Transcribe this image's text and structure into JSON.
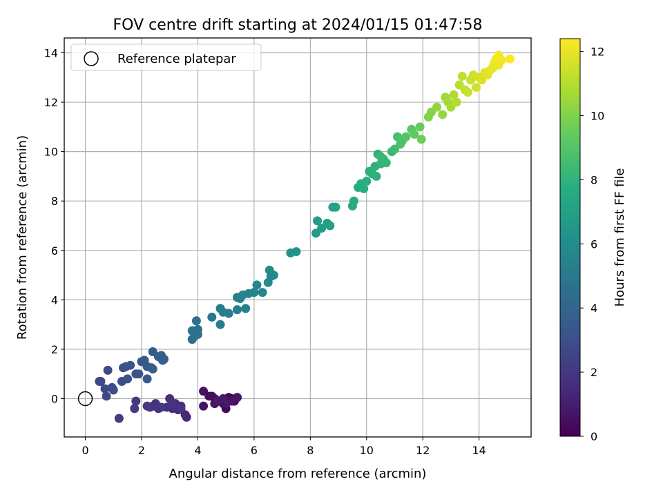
{
  "chart_data": {
    "type": "scatter",
    "title": "FOV centre drift starting at 2024/01/15 01:47:58",
    "xlabel": "Angular distance from reference (arcmin)",
    "ylabel": "Rotation from reference (arcmin)",
    "xlim": [
      -0.75,
      15.85
    ],
    "ylim": [
      -1.55,
      14.6
    ],
    "xticks": [
      0,
      2,
      4,
      6,
      8,
      10,
      12,
      14
    ],
    "yticks": [
      0,
      2,
      4,
      6,
      8,
      10,
      12,
      14
    ],
    "grid": true,
    "legend": {
      "location": "upper-left",
      "entries": [
        "Reference platepar"
      ]
    },
    "reference_point": {
      "x": 0,
      "y": 0
    },
    "colorbar": {
      "label": "Hours from first FF file",
      "colormap": "viridis",
      "range": [
        0,
        12.4
      ],
      "ticks": [
        0,
        2,
        4,
        6,
        8,
        10,
        12
      ]
    },
    "series": [
      {
        "color_by": "hours",
        "x": [
          5.4,
          5.3,
          5.2,
          5.1,
          5.0,
          4.9,
          4.8,
          4.6,
          4.5,
          4.4,
          4.2,
          4.2,
          4.6,
          5.2,
          5.4,
          5.0,
          4.7,
          4.9,
          3.6,
          3.55,
          3.4,
          3.3,
          3.2,
          3.1,
          3.0,
          2.9,
          2.6,
          2.5,
          2.4,
          2.3,
          3.1,
          3.4,
          2.7,
          2.2,
          1.8,
          1.75,
          1.2,
          0.5,
          0.55,
          0.7,
          0.75,
          0.8,
          0.95,
          1.0,
          1.3,
          1.35,
          1.5,
          1.6,
          1.45,
          1.8,
          1.9,
          2.0,
          2.2,
          2.1,
          2.35,
          2.2,
          2.4,
          2.6,
          2.75,
          2.8,
          2.4,
          2.7,
          3.8,
          3.9,
          4.0,
          3.85,
          3.95,
          3.9,
          3.8,
          4.0,
          4.5,
          4.8,
          4.9,
          5.1,
          4.8,
          5.4,
          5.7,
          5.5,
          5.4,
          5.6,
          5.8,
          6.0,
          6.1,
          6.3,
          6.5,
          6.6,
          6.55,
          6.7,
          7.3,
          7.5,
          8.2,
          8.25,
          8.4,
          8.7,
          8.8,
          8.6,
          8.9,
          9.5,
          9.55,
          9.7,
          9.8,
          9.9,
          10.0,
          10.1,
          10.2,
          10.3,
          10.35,
          10.4,
          10.5,
          10.6,
          10.7,
          10.9,
          10.5,
          11.0,
          11.1,
          11.2,
          11.25,
          11.3,
          11.4,
          11.6,
          11.7,
          11.9,
          11.95,
          12.2,
          12.3,
          12.5,
          12.7,
          12.8,
          12.9,
          13.0,
          13.1,
          13.2,
          13.3,
          13.4,
          13.5,
          13.6,
          13.7,
          13.8,
          13.9,
          14.0,
          14.1,
          14.2,
          14.3,
          14.4,
          14.5,
          14.55,
          14.6,
          14.7,
          14.8,
          15.1,
          14.5,
          14.7
        ],
        "y": [
          0.05,
          -0.1,
          0.0,
          0.05,
          -0.4,
          -0.2,
          -0.1,
          0.0,
          0.1,
          0.1,
          0.3,
          -0.3,
          -0.2,
          -0.1,
          0.05,
          -0.2,
          -0.1,
          0.0,
          -0.75,
          -0.65,
          -0.3,
          -0.45,
          -0.2,
          -0.4,
          0.0,
          -0.35,
          -0.4,
          -0.2,
          -0.3,
          -0.35,
          -0.2,
          -0.4,
          -0.35,
          -0.3,
          -0.1,
          -0.4,
          -0.8,
          0.7,
          0.7,
          0.4,
          0.1,
          1.15,
          0.45,
          0.35,
          0.7,
          1.25,
          0.8,
          1.35,
          1.3,
          1.0,
          1.0,
          1.5,
          1.3,
          1.55,
          1.25,
          0.8,
          1.9,
          1.7,
          1.55,
          1.6,
          1.2,
          1.75,
          2.4,
          2.6,
          2.8,
          2.7,
          3.15,
          2.55,
          2.75,
          2.6,
          3.3,
          3.0,
          3.5,
          3.45,
          3.65,
          3.6,
          3.65,
          4.05,
          4.1,
          4.2,
          4.25,
          4.3,
          4.6,
          4.3,
          4.7,
          4.95,
          5.2,
          5.0,
          5.9,
          5.95,
          6.7,
          7.2,
          6.9,
          7.0,
          7.75,
          7.1,
          7.75,
          7.8,
          8.0,
          8.55,
          8.7,
          8.5,
          8.8,
          9.2,
          9.1,
          9.4,
          9.0,
          9.9,
          9.5,
          9.7,
          9.55,
          10.0,
          9.8,
          10.1,
          10.6,
          10.3,
          10.4,
          10.5,
          10.6,
          10.9,
          10.7,
          11.0,
          10.5,
          11.4,
          11.6,
          11.8,
          11.5,
          12.2,
          12.0,
          11.8,
          12.3,
          12.0,
          12.7,
          13.05,
          12.5,
          12.4,
          12.9,
          13.1,
          12.6,
          13.0,
          12.9,
          13.2,
          13.1,
          13.3,
          13.45,
          13.6,
          13.75,
          13.9,
          13.7,
          13.75,
          13.4,
          13.5
        ],
        "hours": [
          0.05,
          0.1,
          0.15,
          0.2,
          0.25,
          0.3,
          0.35,
          0.4,
          0.45,
          0.5,
          0.55,
          0.6,
          0.65,
          0.7,
          0.75,
          0.8,
          0.85,
          0.9,
          1.3,
          1.35,
          1.4,
          1.45,
          1.5,
          1.55,
          1.6,
          1.65,
          1.7,
          1.75,
          1.8,
          1.85,
          1.9,
          1.95,
          2.0,
          2.05,
          2.1,
          2.15,
          2.2,
          2.6,
          2.65,
          2.7,
          2.75,
          2.8,
          2.85,
          2.9,
          2.95,
          3.0,
          3.05,
          3.1,
          3.15,
          3.2,
          3.25,
          3.3,
          3.35,
          3.4,
          3.45,
          3.5,
          3.55,
          3.6,
          3.65,
          3.7,
          3.75,
          3.8,
          4.4,
          4.45,
          4.5,
          4.55,
          4.6,
          4.65,
          4.7,
          4.75,
          4.9,
          5.0,
          5.05,
          5.1,
          5.15,
          5.2,
          5.3,
          5.35,
          5.4,
          5.45,
          5.5,
          5.55,
          5.6,
          5.65,
          5.75,
          5.8,
          5.85,
          5.9,
          6.3,
          6.35,
          6.75,
          6.8,
          6.85,
          6.9,
          7.0,
          7.05,
          7.1,
          7.5,
          7.55,
          7.6,
          7.65,
          7.7,
          7.75,
          7.8,
          7.85,
          7.9,
          7.95,
          8.0,
          8.05,
          8.1,
          8.15,
          8.2,
          8.25,
          8.5,
          8.6,
          8.7,
          8.8,
          8.9,
          9.0,
          9.2,
          9.3,
          9.5,
          9.6,
          10.0,
          10.1,
          10.3,
          10.4,
          10.6,
          10.7,
          10.8,
          10.9,
          11.0,
          11.1,
          11.2,
          11.3,
          11.35,
          11.4,
          11.5,
          11.55,
          11.6,
          11.7,
          11.8,
          11.9,
          12.0,
          12.1,
          12.15,
          12.2,
          12.25,
          12.3,
          12.4,
          12.0,
          12.1
        ]
      }
    ]
  }
}
